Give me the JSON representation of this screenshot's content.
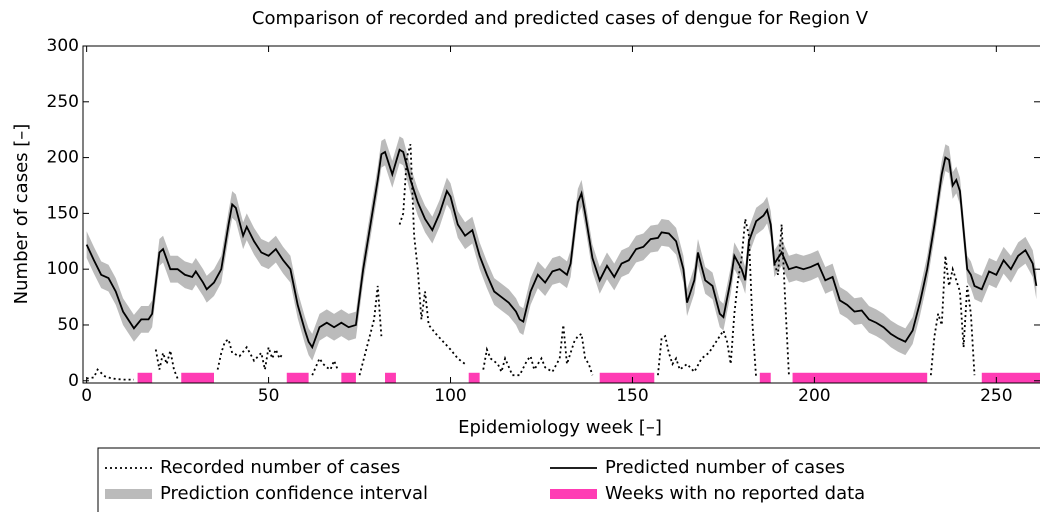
{
  "chart_data": {
    "type": "line",
    "title": "Comparison of recorded and predicted cases of dengue for Region V",
    "xlabel": "Epidemiology week [–]",
    "ylabel": "Number of cases [–]",
    "xlim": [
      -1,
      262
    ],
    "ylim": [
      -2,
      300
    ],
    "xticks": [
      0,
      50,
      100,
      150,
      200,
      250
    ],
    "yticks": [
      0,
      50,
      100,
      150,
      200,
      250,
      300
    ],
    "series": [
      {
        "name": "Recorded number of cases",
        "color": "#000000",
        "style": "dotted",
        "x": [
          0,
          2,
          3,
          5,
          7,
          10,
          13,
          15,
          19,
          20,
          21,
          22,
          23,
          24,
          25,
          30,
          36,
          37,
          38,
          39,
          40,
          42,
          44,
          46,
          48,
          49,
          50,
          51,
          52,
          53,
          54,
          58,
          62,
          64,
          65,
          66,
          67,
          68,
          69,
          72,
          75,
          77,
          79,
          80,
          81,
          83,
          86,
          87,
          88,
          89,
          90,
          91,
          92,
          93,
          94,
          96,
          98,
          100,
          102,
          104,
          106,
          109,
          110,
          111,
          113,
          114,
          115,
          117,
          119,
          121,
          122,
          123,
          125,
          126,
          128,
          130,
          131,
          132,
          133,
          134,
          135,
          136,
          137,
          138,
          139,
          148,
          157,
          158,
          159,
          160,
          161,
          162,
          163,
          165,
          167,
          169,
          171,
          173,
          175,
          176,
          177,
          178,
          179,
          180,
          181,
          182,
          183,
          184,
          186,
          189,
          190,
          191,
          192,
          193,
          200,
          232,
          233,
          234,
          235,
          236,
          237,
          238,
          239,
          240,
          241,
          242,
          243,
          244
        ],
        "values": [
          2,
          3,
          10,
          4,
          2,
          1,
          1,
          null,
          28,
          10,
          25,
          15,
          27,
          10,
          2,
          null,
          10,
          25,
          35,
          37,
          25,
          22,
          30,
          18,
          25,
          10,
          30,
          20,
          28,
          20,
          25,
          null,
          5,
          20,
          15,
          12,
          10,
          18,
          10,
          null,
          5,
          30,
          55,
          85,
          40,
          null,
          140,
          150,
          200,
          212,
          130,
          100,
          55,
          80,
          50,
          42,
          35,
          28,
          20,
          15,
          null,
          10,
          28,
          20,
          15,
          8,
          20,
          5,
          5,
          18,
          22,
          10,
          20,
          12,
          8,
          20,
          50,
          15,
          25,
          35,
          40,
          42,
          20,
          15,
          5,
          null,
          5,
          38,
          40,
          25,
          15,
          20,
          10,
          15,
          8,
          20,
          25,
          35,
          45,
          35,
          15,
          60,
          90,
          110,
          145,
          130,
          50,
          2,
          null,
          105,
          95,
          140,
          70,
          5,
          null,
          5,
          40,
          60,
          50,
          112,
          85,
          100,
          90,
          80,
          30,
          85,
          60,
          5
        ]
      },
      {
        "name": "Predicted number of cases",
        "color": "#000000",
        "style": "solid",
        "x": [
          0,
          2,
          4,
          6,
          8,
          10,
          12,
          13,
          15,
          17,
          18,
          20,
          21,
          23,
          25,
          27,
          29,
          30,
          32,
          33,
          35,
          37,
          39,
          40,
          41,
          43,
          44,
          46,
          48,
          50,
          52,
          54,
          56,
          58,
          60,
          61,
          62,
          64,
          66,
          68,
          70,
          72,
          74,
          76,
          78,
          80,
          81,
          82,
          84,
          86,
          87,
          89,
          91,
          93,
          95,
          97,
          99,
          100,
          102,
          104,
          106,
          108,
          110,
          112,
          114,
          116,
          118,
          119,
          120,
          122,
          124,
          126,
          128,
          130,
          132,
          133,
          135,
          136,
          137,
          139,
          141,
          143,
          145,
          147,
          149,
          151,
          153,
          155,
          157,
          158,
          160,
          162,
          164,
          165,
          167,
          168,
          170,
          172,
          174,
          175,
          177,
          178,
          180,
          181,
          182,
          184,
          186,
          187,
          188,
          189,
          191,
          193,
          195,
          197,
          199,
          201,
          203,
          205,
          207,
          209,
          211,
          213,
          215,
          217,
          219,
          221,
          223,
          225,
          227,
          229,
          231,
          233,
          235,
          236,
          237,
          238,
          239,
          240,
          242,
          243,
          244,
          246,
          248,
          250,
          252,
          254,
          256,
          258,
          260,
          261
        ],
        "values": [
          122,
          108,
          95,
          92,
          80,
          62,
          52,
          47,
          55,
          55,
          60,
          115,
          118,
          100,
          100,
          95,
          93,
          98,
          88,
          82,
          88,
          100,
          140,
          158,
          155,
          130,
          138,
          125,
          115,
          112,
          118,
          108,
          100,
          68,
          45,
          35,
          30,
          48,
          52,
          48,
          52,
          48,
          50,
          100,
          140,
          180,
          203,
          205,
          185,
          207,
          205,
          180,
          160,
          145,
          135,
          150,
          170,
          165,
          140,
          130,
          135,
          112,
          95,
          80,
          75,
          70,
          62,
          55,
          53,
          80,
          95,
          88,
          98,
          100,
          95,
          105,
          160,
          168,
          150,
          110,
          90,
          103,
          93,
          105,
          108,
          118,
          120,
          127,
          128,
          133,
          132,
          125,
          100,
          70,
          90,
          115,
          90,
          85,
          60,
          57,
          90,
          112,
          100,
          90,
          125,
          143,
          148,
          153,
          140,
          105,
          115,
          100,
          102,
          100,
          102,
          105,
          90,
          93,
          72,
          68,
          62,
          63,
          55,
          52,
          48,
          42,
          38,
          35,
          45,
          70,
          100,
          140,
          185,
          200,
          198,
          175,
          180,
          170,
          100,
          95,
          85,
          82,
          98,
          95,
          108,
          100,
          112,
          117,
          105,
          85
        ]
      }
    ],
    "confidence_interval": {
      "name": "Prediction confidence interval",
      "color": "#bbbbbb",
      "half_width": 12
    },
    "no_data": {
      "name": "Weeks with no reported data",
      "color": "#ff3cb4",
      "ranges": [
        [
          14,
          18
        ],
        [
          26,
          35
        ],
        [
          55,
          61
        ],
        [
          70,
          74
        ],
        [
          82,
          85
        ],
        [
          105,
          108
        ],
        [
          141,
          156
        ],
        [
          185,
          188
        ],
        [
          194,
          231
        ],
        [
          246,
          262
        ]
      ]
    }
  }
}
